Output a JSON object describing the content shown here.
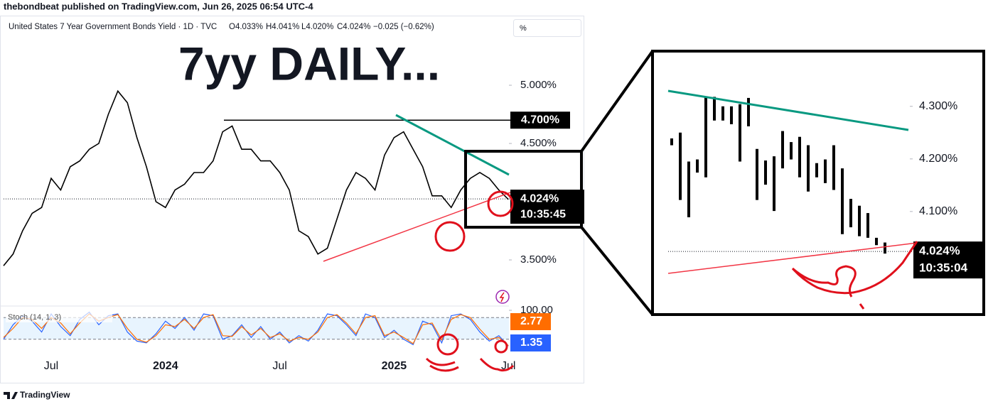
{
  "header": {
    "published": "thebondbeat published on TradingView.com, Jun 26, 2025 06:54 UTC-4",
    "footer": "TradingView"
  },
  "chart_data": [
    {
      "type": "line",
      "title": "United States 7 Year Government Bonds Yield · 1D · TVC",
      "ohlc": [
        "O4.033%",
        "H4.041%",
        "L4.020%",
        "C4.024%",
        "−0.025 (−0.62%)"
      ],
      "annotation": "7yy DAILY...",
      "unit_button": "%",
      "color": "#000000",
      "categories": [
        null,
        null,
        null,
        null,
        null,
        "Jul",
        null,
        null,
        null,
        null,
        null,
        null,
        null,
        null,
        null,
        null,
        null,
        "2024",
        null,
        null,
        null,
        null,
        null,
        null,
        null,
        null,
        null,
        null,
        null,
        "Jul",
        null,
        null,
        null,
        null,
        null,
        null,
        null,
        null,
        null,
        null,
        null,
        "2025",
        null,
        null,
        null,
        null,
        null,
        null,
        null,
        null,
        null,
        null,
        null,
        "Jul"
      ],
      "values": [
        3.45,
        3.55,
        3.75,
        3.9,
        3.95,
        4.2,
        4.1,
        4.3,
        4.35,
        4.45,
        4.5,
        4.75,
        4.95,
        4.85,
        4.55,
        4.3,
        4.0,
        3.95,
        4.1,
        4.15,
        4.25,
        4.25,
        4.35,
        4.6,
        4.65,
        4.45,
        4.45,
        4.35,
        4.35,
        4.25,
        4.1,
        3.75,
        3.7,
        3.55,
        3.6,
        3.85,
        4.1,
        4.25,
        4.2,
        4.1,
        4.4,
        4.55,
        4.6,
        4.45,
        4.3,
        4.05,
        4.05,
        3.95,
        4.1,
        4.2,
        4.25,
        4.2,
        4.1,
        4.02
      ],
      "ylim": [
        3.11,
        5.61
      ],
      "yticks": [
        {
          "value": 5.0,
          "label": "5.000%"
        },
        {
          "value": 4.5,
          "label": "4.500%"
        },
        {
          "value": 3.5,
          "label": "3.500%"
        }
      ],
      "hline": {
        "value": 4.7,
        "label": "4.700%"
      },
      "last_price": {
        "value": 4.024,
        "label": "4.024%",
        "countdown": "10:35:45"
      }
    },
    {
      "type": "line",
      "title": "Stoch (14, 1, 3)",
      "ylim": [
        0,
        100
      ],
      "yticks": [
        {
          "value": 100,
          "label": "100.00"
        }
      ],
      "bands": [
        80,
        20
      ],
      "series": [
        {
          "color": "#2962ff",
          "values": [
            20,
            60,
            85,
            70,
            40,
            90,
            55,
            30,
            75,
            95,
            60,
            85,
            90,
            40,
            15,
            10,
            35,
            70,
            50,
            80,
            45,
            90,
            85,
            20,
            30,
            60,
            25,
            55,
            20,
            40,
            10,
            30,
            15,
            45,
            90,
            85,
            60,
            30,
            90,
            80,
            25,
            45,
            20,
            5,
            70,
            60,
            10,
            85,
            90,
            75,
            40,
            15,
            30,
            1.35
          ]
        },
        {
          "color": "#ff6d00",
          "values": [
            25,
            50,
            80,
            75,
            50,
            80,
            65,
            35,
            65,
            90,
            70,
            80,
            88,
            50,
            20,
            12,
            30,
            60,
            55,
            75,
            50,
            80,
            88,
            30,
            28,
            55,
            32,
            50,
            25,
            35,
            15,
            25,
            20,
            40,
            80,
            88,
            65,
            35,
            80,
            85,
            30,
            40,
            25,
            8,
            60,
            65,
            18,
            75,
            88,
            80,
            48,
            20,
            25,
            2.77
          ]
        }
      ]
    },
    {
      "type": "ohlc",
      "ylim": [
        3.904,
        4.405
      ],
      "yticks": [
        {
          "value": 4.3,
          "label": "4.300%"
        },
        {
          "value": 4.2,
          "label": "4.200%"
        },
        {
          "value": 4.1,
          "label": "4.100%"
        }
      ],
      "high": [
        4.239,
        4.25,
        4.195,
        4.199,
        4.318,
        4.318,
        4.3,
        4.3,
        4.304,
        4.316,
        4.219,
        4.197,
        4.205,
        4.253,
        4.232,
        4.242,
        4.226,
        4.192,
        4.199,
        4.226,
        4.182,
        4.124,
        4.111,
        4.097,
        4.05,
        4.041
      ],
      "low": [
        4.226,
        4.122,
        4.089,
        4.174,
        4.165,
        4.273,
        4.273,
        4.266,
        4.195,
        4.262,
        4.122,
        4.151,
        4.101,
        4.182,
        4.199,
        4.165,
        4.138,
        4.165,
        4.154,
        4.141,
        4.057,
        4.07,
        4.053,
        4.05,
        4.036,
        4.02
      ],
      "last_price": {
        "value": 4.024,
        "label": "4.024%",
        "countdown": "10:35:04"
      }
    }
  ]
}
